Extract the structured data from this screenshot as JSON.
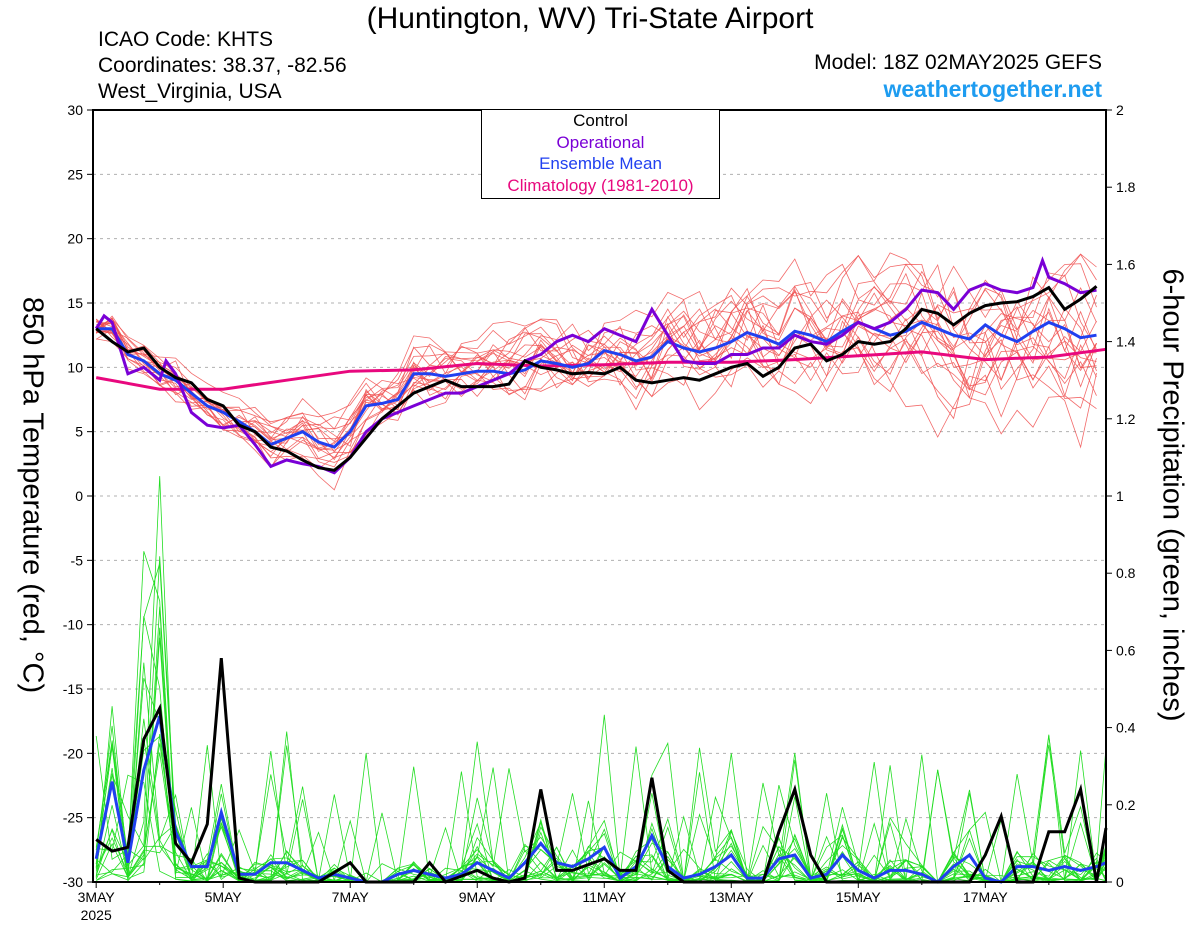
{
  "header": {
    "title": "(Huntington, WV) Tri-State Airport",
    "icao": "ICAO Code: KHTS",
    "coordinates": "Coordinates: 38.37, -82.56",
    "region": "West_Virginia, USA",
    "model": "Model: 18Z 02MAY2025 GEFS",
    "site": "weathertogether.net"
  },
  "colors": {
    "control": "#000000",
    "operational": "#7a00d6",
    "ensemble_mean": "#2040f0",
    "climatology": "#e8087e",
    "temp_members": "#f05050",
    "precip_members": "#22dd22",
    "site_text": "#1e9cf0"
  },
  "chart_data": {
    "type": "line",
    "title": "(Huntington, WV) Tri-State Airport",
    "ylabel_left": "850 hPa Temperature (red, °C)",
    "ylabel_right": "6-hour Precipitation (green, inches)",
    "ylim_left": [
      -30,
      30
    ],
    "ylim_right": [
      0,
      2
    ],
    "yticks_left": [
      "30",
      "25",
      "20",
      "15",
      "10",
      "5",
      "0",
      "-5",
      "-10",
      "-15",
      "-20",
      "-25",
      "-30"
    ],
    "yticks_right": [
      "2",
      "1.8",
      "1.6",
      "1.4",
      "1.2",
      "1",
      "0.8",
      "0.6",
      "0.4",
      "0.2",
      "0"
    ],
    "xlim_days": [
      2.95,
      18.9
    ],
    "xticks": [
      {
        "day": 3,
        "label": "3MAY",
        "sublabel": "2025"
      },
      {
        "day": 5,
        "label": "5MAY"
      },
      {
        "day": 7,
        "label": "7MAY"
      },
      {
        "day": 9,
        "label": "9MAY"
      },
      {
        "day": 11,
        "label": "11MAY"
      },
      {
        "day": 13,
        "label": "13MAY"
      },
      {
        "day": 15,
        "label": "15MAY"
      },
      {
        "day": 17,
        "label": "17MAY"
      }
    ],
    "legend": {
      "placement": "top-center",
      "entries": [
        "Control",
        "Operational",
        "Ensemble Mean",
        "Climatology (1981-2010)"
      ]
    },
    "grid": "horizontal dashed",
    "temperature": {
      "control": [
        [
          3.0,
          13.0
        ],
        [
          3.25,
          12.0
        ],
        [
          3.5,
          11.2
        ],
        [
          3.75,
          11.5
        ],
        [
          4.0,
          10.0
        ],
        [
          4.25,
          9.2
        ],
        [
          4.5,
          8.8
        ],
        [
          4.75,
          7.5
        ],
        [
          5.0,
          7.0
        ],
        [
          5.25,
          5.5
        ],
        [
          5.5,
          5.0
        ],
        [
          5.75,
          3.8
        ],
        [
          6.0,
          3.5
        ],
        [
          6.25,
          2.8
        ],
        [
          6.5,
          2.2
        ],
        [
          6.75,
          2.0
        ],
        [
          7.0,
          3.0
        ],
        [
          7.25,
          4.5
        ],
        [
          7.5,
          6.0
        ],
        [
          7.75,
          7.0
        ],
        [
          8.0,
          8.0
        ],
        [
          8.25,
          8.5
        ],
        [
          8.5,
          9.0
        ],
        [
          8.75,
          8.5
        ],
        [
          9.0,
          8.5
        ],
        [
          9.25,
          8.5
        ],
        [
          9.5,
          8.7
        ],
        [
          9.75,
          10.5
        ],
        [
          10.0,
          10.0
        ],
        [
          10.25,
          9.8
        ],
        [
          10.5,
          9.5
        ],
        [
          10.75,
          9.6
        ],
        [
          11.0,
          9.5
        ],
        [
          11.25,
          10.0
        ],
        [
          11.5,
          9.0
        ],
        [
          11.75,
          8.8
        ],
        [
          12.0,
          9.0
        ],
        [
          12.25,
          9.2
        ],
        [
          12.5,
          9.0
        ],
        [
          12.75,
          9.5
        ],
        [
          13.0,
          10.0
        ],
        [
          13.25,
          10.3
        ],
        [
          13.5,
          9.3
        ],
        [
          13.75,
          10.0
        ],
        [
          14.0,
          11.5
        ],
        [
          14.25,
          11.8
        ],
        [
          14.5,
          10.5
        ],
        [
          14.75,
          11.0
        ],
        [
          15.0,
          12.0
        ],
        [
          15.25,
          11.8
        ],
        [
          15.5,
          12.0
        ],
        [
          15.75,
          13.0
        ],
        [
          16.0,
          14.5
        ],
        [
          16.25,
          14.2
        ],
        [
          16.5,
          13.3
        ],
        [
          16.75,
          14.2
        ],
        [
          17.0,
          14.8
        ],
        [
          17.25,
          15.0
        ],
        [
          17.5,
          15.1
        ],
        [
          17.75,
          15.5
        ],
        [
          18.0,
          16.2
        ],
        [
          18.25,
          14.5
        ],
        [
          18.5,
          15.3
        ],
        [
          18.75,
          16.3
        ]
      ],
      "operational": [
        [
          3.0,
          13.0
        ],
        [
          3.125,
          14.0
        ],
        [
          3.25,
          13.5
        ],
        [
          3.5,
          9.5
        ],
        [
          3.75,
          10.0
        ],
        [
          4.0,
          9.0
        ],
        [
          4.1,
          10.5
        ],
        [
          4.25,
          9.5
        ],
        [
          4.5,
          6.5
        ],
        [
          4.75,
          5.5
        ],
        [
          5.0,
          5.3
        ],
        [
          5.25,
          5.5
        ],
        [
          5.5,
          4.0
        ],
        [
          5.75,
          2.3
        ],
        [
          6.0,
          2.8
        ],
        [
          6.25,
          2.5
        ],
        [
          6.5,
          2.3
        ],
        [
          6.75,
          1.8
        ],
        [
          7.0,
          3.0
        ],
        [
          7.25,
          5.0
        ],
        [
          7.5,
          6.0
        ],
        [
          7.75,
          6.5
        ],
        [
          8.0,
          7.0
        ],
        [
          8.25,
          7.5
        ],
        [
          8.5,
          8.0
        ],
        [
          8.75,
          8.0
        ],
        [
          9.0,
          8.5
        ],
        [
          9.25,
          9.0
        ],
        [
          9.5,
          9.5
        ],
        [
          9.75,
          10.5
        ],
        [
          10.0,
          11.0
        ],
        [
          10.25,
          12.0
        ],
        [
          10.5,
          12.5
        ],
        [
          10.75,
          12.0
        ],
        [
          11.0,
          13.0
        ],
        [
          11.25,
          12.5
        ],
        [
          11.5,
          12.0
        ],
        [
          11.75,
          14.5
        ],
        [
          12.0,
          12.5
        ],
        [
          12.25,
          10.5
        ],
        [
          12.5,
          10.3
        ],
        [
          12.75,
          10.3
        ],
        [
          13.0,
          11.0
        ],
        [
          13.25,
          11.0
        ],
        [
          13.5,
          11.5
        ],
        [
          13.75,
          11.5
        ],
        [
          14.0,
          12.5
        ],
        [
          14.25,
          12.0
        ],
        [
          14.5,
          11.8
        ],
        [
          14.75,
          12.5
        ],
        [
          15.0,
          13.5
        ],
        [
          15.25,
          13.0
        ],
        [
          15.5,
          13.5
        ],
        [
          15.75,
          14.5
        ],
        [
          16.0,
          16.0
        ],
        [
          16.25,
          15.8
        ],
        [
          16.5,
          14.5
        ],
        [
          16.75,
          16.0
        ],
        [
          17.0,
          16.5
        ],
        [
          17.25,
          16.0
        ],
        [
          17.5,
          15.8
        ],
        [
          17.75,
          16.2
        ],
        [
          17.9,
          18.3
        ],
        [
          18.0,
          17.0
        ],
        [
          18.25,
          16.5
        ],
        [
          18.5,
          15.8
        ],
        [
          18.75,
          16.0
        ]
      ],
      "ensemble_mean": [
        [
          3.0,
          13.0
        ],
        [
          3.25,
          13.0
        ],
        [
          3.5,
          11.0
        ],
        [
          3.75,
          10.5
        ],
        [
          4.0,
          9.5
        ],
        [
          4.25,
          9.0
        ],
        [
          4.5,
          8.0
        ],
        [
          4.75,
          7.0
        ],
        [
          5.0,
          6.5
        ],
        [
          5.25,
          5.8
        ],
        [
          5.5,
          5.0
        ],
        [
          5.75,
          4.0
        ],
        [
          6.0,
          4.5
        ],
        [
          6.25,
          5.0
        ],
        [
          6.5,
          4.2
        ],
        [
          6.75,
          3.8
        ],
        [
          7.0,
          5.0
        ],
        [
          7.25,
          7.0
        ],
        [
          7.5,
          7.2
        ],
        [
          7.75,
          7.5
        ],
        [
          8.0,
          9.5
        ],
        [
          8.25,
          9.5
        ],
        [
          8.5,
          9.3
        ],
        [
          8.75,
          9.5
        ],
        [
          9.0,
          9.7
        ],
        [
          9.25,
          9.7
        ],
        [
          9.5,
          9.5
        ],
        [
          9.75,
          9.8
        ],
        [
          10.0,
          10.5
        ],
        [
          10.25,
          10.3
        ],
        [
          10.5,
          10.0
        ],
        [
          10.75,
          10.3
        ],
        [
          11.0,
          11.3
        ],
        [
          11.25,
          11.0
        ],
        [
          11.5,
          10.5
        ],
        [
          11.75,
          10.8
        ],
        [
          12.0,
          12.0
        ],
        [
          12.25,
          11.5
        ],
        [
          12.5,
          11.2
        ],
        [
          12.75,
          11.5
        ],
        [
          13.0,
          12.0
        ],
        [
          13.25,
          12.7
        ],
        [
          13.5,
          12.3
        ],
        [
          13.75,
          11.8
        ],
        [
          14.0,
          12.8
        ],
        [
          14.25,
          12.5
        ],
        [
          14.5,
          12.0
        ],
        [
          14.75,
          12.8
        ],
        [
          15.0,
          13.5
        ],
        [
          15.25,
          13.0
        ],
        [
          15.5,
          12.5
        ],
        [
          15.75,
          12.8
        ],
        [
          16.0,
          13.5
        ],
        [
          16.25,
          13.0
        ],
        [
          16.5,
          12.5
        ],
        [
          16.75,
          12.2
        ],
        [
          17.0,
          13.3
        ],
        [
          17.25,
          12.5
        ],
        [
          17.5,
          12.0
        ],
        [
          17.75,
          12.8
        ],
        [
          18.0,
          13.5
        ],
        [
          18.25,
          13.0
        ],
        [
          18.5,
          12.3
        ],
        [
          18.75,
          12.5
        ]
      ],
      "climatology": [
        [
          3.0,
          9.2
        ],
        [
          4.0,
          8.3
        ],
        [
          5.0,
          8.3
        ],
        [
          6.0,
          9.0
        ],
        [
          7.0,
          9.7
        ],
        [
          8.0,
          9.8
        ],
        [
          9.0,
          10.3
        ],
        [
          10.0,
          10.1
        ],
        [
          11.0,
          10.2
        ],
        [
          12.0,
          10.4
        ],
        [
          13.0,
          10.4
        ],
        [
          14.0,
          10.6
        ],
        [
          15.0,
          10.9
        ],
        [
          16.0,
          11.2
        ],
        [
          17.0,
          10.6
        ],
        [
          18.0,
          10.8
        ],
        [
          18.9,
          11.4
        ]
      ]
    },
    "precipitation": {
      "control": [
        [
          3.0,
          0.11
        ],
        [
          3.25,
          0.08
        ],
        [
          3.5,
          0.09
        ],
        [
          3.75,
          0.37
        ],
        [
          4.0,
          0.45
        ],
        [
          4.25,
          0.1
        ],
        [
          4.5,
          0.05
        ],
        [
          4.75,
          0.15
        ],
        [
          4.97,
          0.58
        ],
        [
          5.25,
          0.01
        ],
        [
          5.5,
          0.0
        ],
        [
          5.75,
          0.0
        ],
        [
          6.0,
          0.0
        ],
        [
          6.5,
          0.0
        ],
        [
          7.0,
          0.05
        ],
        [
          7.25,
          0.0
        ],
        [
          8.0,
          0.0
        ],
        [
          8.25,
          0.05
        ],
        [
          8.5,
          0.0
        ],
        [
          9.0,
          0.03
        ],
        [
          9.25,
          0.01
        ],
        [
          9.5,
          0.0
        ],
        [
          9.75,
          0.01
        ],
        [
          10.0,
          0.24
        ],
        [
          10.25,
          0.03
        ],
        [
          10.5,
          0.03
        ],
        [
          11.0,
          0.06
        ],
        [
          11.25,
          0.03
        ],
        [
          11.5,
          0.03
        ],
        [
          11.75,
          0.27
        ],
        [
          12.0,
          0.03
        ],
        [
          12.25,
          0.0
        ],
        [
          12.5,
          0.0
        ],
        [
          12.75,
          0.0
        ],
        [
          13.0,
          0.0
        ],
        [
          13.25,
          0.0
        ],
        [
          13.5,
          0.0
        ],
        [
          13.75,
          0.13
        ],
        [
          14.0,
          0.24
        ],
        [
          14.25,
          0.07
        ],
        [
          14.5,
          0.0
        ],
        [
          15.0,
          0.0
        ],
        [
          15.25,
          0.0
        ],
        [
          15.5,
          0.0
        ],
        [
          15.75,
          0.0
        ],
        [
          16.0,
          0.0
        ],
        [
          16.25,
          0.0
        ],
        [
          16.5,
          0.0
        ],
        [
          16.75,
          0.0
        ],
        [
          17.0,
          0.07
        ],
        [
          17.25,
          0.17
        ],
        [
          17.5,
          0.0
        ],
        [
          17.75,
          0.0
        ],
        [
          18.0,
          0.13
        ],
        [
          18.25,
          0.13
        ],
        [
          18.5,
          0.24
        ],
        [
          18.75,
          0.0
        ],
        [
          18.9,
          0.14
        ]
      ],
      "ensemble_mean": [
        [
          3.0,
          0.06
        ],
        [
          3.25,
          0.26
        ],
        [
          3.5,
          0.05
        ],
        [
          3.75,
          0.29
        ],
        [
          4.0,
          0.43
        ],
        [
          4.25,
          0.13
        ],
        [
          4.5,
          0.04
        ],
        [
          4.75,
          0.04
        ],
        [
          4.97,
          0.18
        ],
        [
          5.25,
          0.02
        ],
        [
          5.5,
          0.02
        ],
        [
          5.75,
          0.05
        ],
        [
          6.0,
          0.05
        ],
        [
          6.25,
          0.03
        ],
        [
          6.5,
          0.01
        ],
        [
          6.75,
          0.02
        ],
        [
          7.0,
          0.01
        ],
        [
          7.25,
          0.0
        ],
        [
          7.5,
          0.0
        ],
        [
          7.75,
          0.02
        ],
        [
          8.0,
          0.03
        ],
        [
          8.25,
          0.02
        ],
        [
          8.5,
          0.01
        ],
        [
          8.75,
          0.02
        ],
        [
          9.0,
          0.05
        ],
        [
          9.25,
          0.03
        ],
        [
          9.5,
          0.01
        ],
        [
          9.75,
          0.05
        ],
        [
          10.0,
          0.1
        ],
        [
          10.25,
          0.05
        ],
        [
          10.5,
          0.04
        ],
        [
          10.75,
          0.06
        ],
        [
          11.0,
          0.09
        ],
        [
          11.25,
          0.01
        ],
        [
          11.5,
          0.04
        ],
        [
          11.75,
          0.12
        ],
        [
          12.0,
          0.04
        ],
        [
          12.25,
          0.01
        ],
        [
          12.5,
          0.02
        ],
        [
          12.75,
          0.04
        ],
        [
          13.0,
          0.07
        ],
        [
          13.25,
          0.01
        ],
        [
          13.5,
          0.01
        ],
        [
          13.75,
          0.06
        ],
        [
          14.0,
          0.07
        ],
        [
          14.25,
          0.01
        ],
        [
          14.5,
          0.02
        ],
        [
          14.75,
          0.07
        ],
        [
          15.0,
          0.03
        ],
        [
          15.25,
          0.01
        ],
        [
          15.5,
          0.03
        ],
        [
          15.75,
          0.03
        ],
        [
          16.0,
          0.02
        ],
        [
          16.25,
          0.0
        ],
        [
          16.5,
          0.04
        ],
        [
          16.75,
          0.07
        ],
        [
          17.0,
          0.01
        ],
        [
          17.25,
          0.0
        ],
        [
          17.5,
          0.04
        ],
        [
          17.75,
          0.04
        ],
        [
          18.0,
          0.03
        ],
        [
          18.25,
          0.04
        ],
        [
          18.5,
          0.03
        ],
        [
          18.75,
          0.04
        ],
        [
          18.9,
          0.05
        ]
      ]
    }
  }
}
